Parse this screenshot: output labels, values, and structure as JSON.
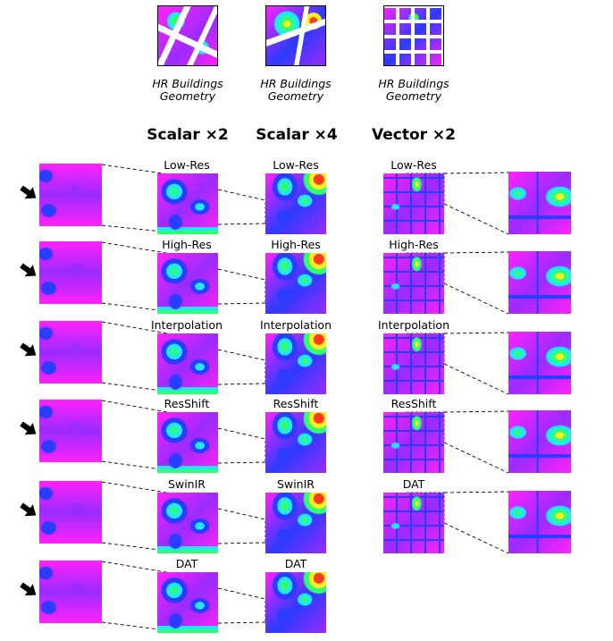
{
  "geometry_titles": [
    {
      "line1": "HR Buildings",
      "line2": "Geometry"
    },
    {
      "line1": "HR Buildings",
      "line2": "Geometry"
    },
    {
      "line1": "HR Buildings",
      "line2": "Geometry"
    }
  ],
  "column_titles": [
    "Scalar ×2",
    "Scalar ×4",
    "Vector ×2"
  ],
  "scalar_rows": [
    "Low-Res",
    "High-Res",
    "Interpolation",
    "ResShift",
    "SwinIR",
    "DAT"
  ],
  "vector_rows": [
    "Low-Res",
    "High-Res",
    "Interpolation",
    "ResShift",
    "DAT"
  ],
  "colors": {
    "magenta": "#ff22ff",
    "violet": "#9b2bff",
    "blue": "#2b3bff",
    "cyan": "#20e6ff",
    "green": "#30ff70",
    "yellow": "#ffee20",
    "red": "#ff3a20"
  }
}
